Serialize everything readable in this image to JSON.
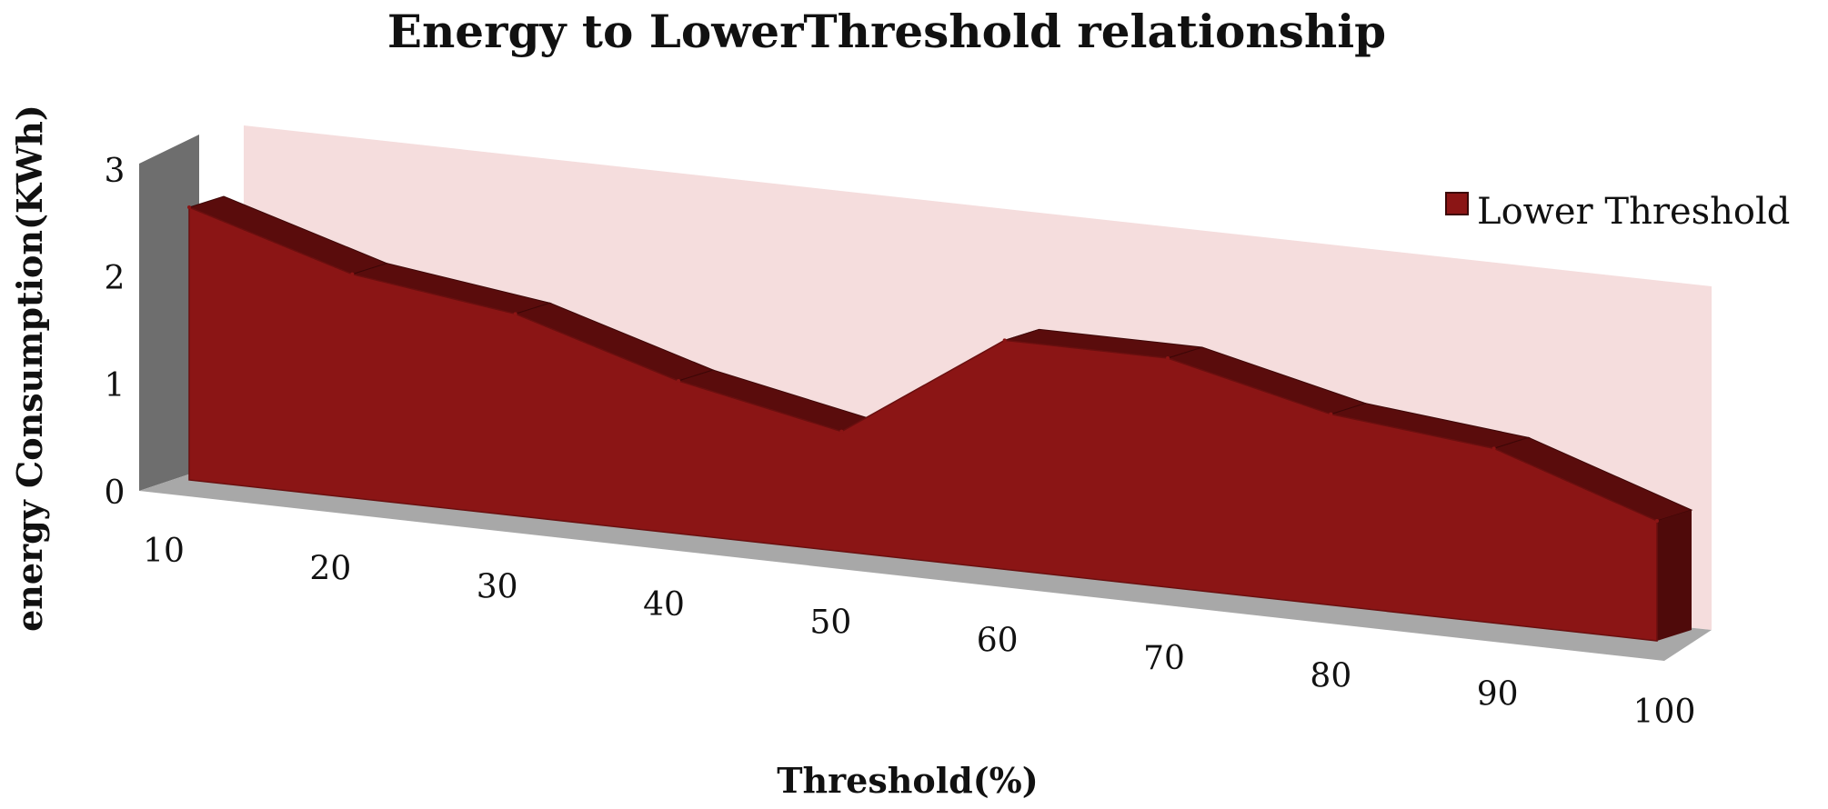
{
  "chart_data": {
    "type": "area",
    "title": "Energy to LowerThreshold relationship",
    "xlabel": "Threshold(%)",
    "ylabel": "energy Consumption(KWh)",
    "categories": [
      "10",
      "20",
      "30",
      "40",
      "50",
      "60",
      "70",
      "80",
      "90",
      "100"
    ],
    "yticks": [
      "0",
      "1",
      "2",
      "3"
    ],
    "ylim": [
      0,
      3
    ],
    "series": [
      {
        "name": "Lower Threshold",
        "values": [
          2.5,
          2.05,
          1.85,
          1.4,
          1.1,
          2.1,
          2.1,
          1.75,
          1.6,
          1.1
        ]
      }
    ],
    "legend_position": "top-right",
    "style": "3d",
    "colors": {
      "area_front": "#8b1515",
      "area_top": "#5a0c0c",
      "back_wall": "#f2d4d4",
      "side_wall": "#6e6e6e",
      "floor": "#a8a8a8"
    }
  }
}
